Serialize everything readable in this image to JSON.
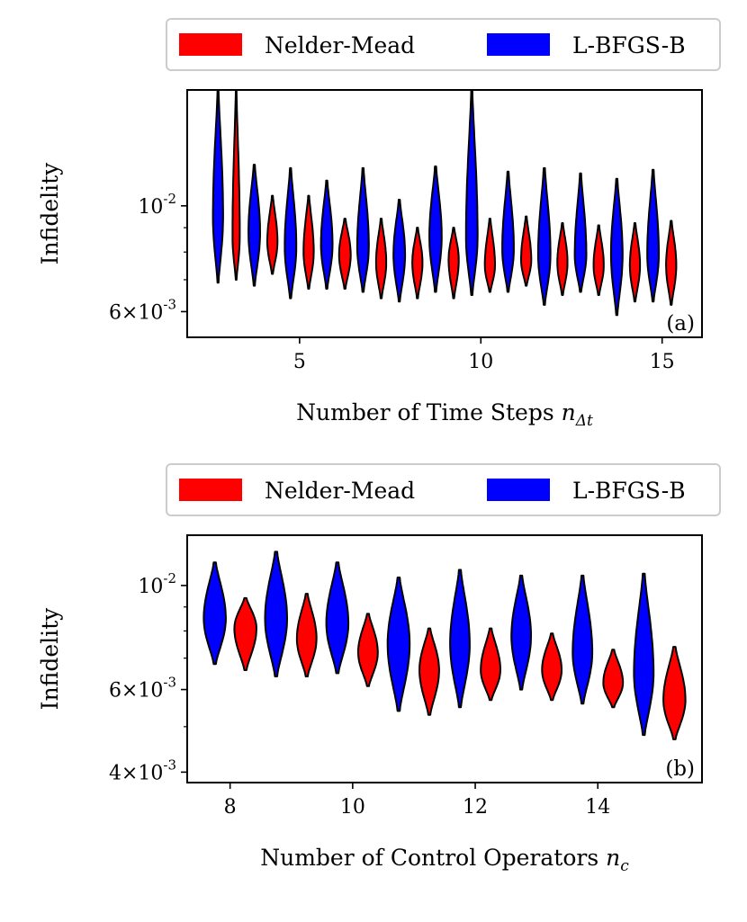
{
  "legend": {
    "entries": [
      {
        "label": "Nelder-Mead",
        "color": "#ff0000"
      },
      {
        "label": "L-BFGS-B",
        "color": "#0000ff"
      }
    ]
  },
  "colors": {
    "nelder_mead": "#ff0000",
    "lbfgsb": "#0000ff",
    "edge": "#000000"
  },
  "chart_data": [
    {
      "type": "violin",
      "panel_tag": "(a)",
      "xlabel_text": "Number of Time Steps ",
      "xlabel_math": "n",
      "xlabel_sub": "Δt",
      "ylabel": "Infidelity",
      "yscale": "log",
      "ylim": [
        0.0053,
        0.0175
      ],
      "xlim": [
        1.9,
        16.1
      ],
      "xticks": [
        {
          "value": 5,
          "label": "5"
        },
        {
          "value": 10,
          "label": "10"
        },
        {
          "value": 15,
          "label": "15"
        }
      ],
      "yticks": [
        {
          "value": 0.01,
          "base": "10",
          "exp": "-2"
        },
        {
          "value": 0.006,
          "base": "6×10",
          "exp": "-3"
        }
      ],
      "y_minor_ticks": [
        0.007,
        0.008,
        0.009
      ],
      "legend_position": "above",
      "series": [
        {
          "name": "L-BFGS-B",
          "colorKey": "lbfgsb",
          "offset": -0.25,
          "x": [
            3,
            4,
            5,
            6,
            7,
            8,
            9,
            10,
            11,
            12,
            13,
            14,
            15
          ],
          "min": [
            0.0069,
            0.0068,
            0.0064,
            0.0067,
            0.0066,
            0.0063,
            0.0066,
            0.0065,
            0.0066,
            0.0062,
            0.0066,
            0.0059,
            0.0063
          ],
          "max": [
            0.0175,
            0.0122,
            0.012,
            0.0113,
            0.012,
            0.0103,
            0.0121,
            0.0175,
            0.0118,
            0.012,
            0.0117,
            0.0114,
            0.0119
          ],
          "mode": [
            0.0095,
            0.0088,
            0.0082,
            0.0083,
            0.0082,
            0.0079,
            0.0086,
            0.0086,
            0.0081,
            0.0079,
            0.0079,
            0.0079,
            0.0079
          ],
          "width": [
            0.14,
            0.16,
            0.16,
            0.16,
            0.16,
            0.16,
            0.17,
            0.16,
            0.16,
            0.17,
            0.16,
            0.16,
            0.16
          ]
        },
        {
          "name": "Nelder-Mead",
          "colorKey": "nelder_mead",
          "offset": 0.25,
          "x": [
            3,
            4,
            5,
            6,
            7,
            8,
            9,
            10,
            11,
            12,
            13,
            14,
            15
          ],
          "min": [
            0.007,
            0.0072,
            0.0067,
            0.0067,
            0.0064,
            0.0064,
            0.0064,
            0.0066,
            0.0068,
            0.0065,
            0.0065,
            0.0063,
            0.0062
          ],
          "max": [
            0.0175,
            0.0105,
            0.0105,
            0.0094,
            0.0094,
            0.009,
            0.009,
            0.0094,
            0.0095,
            0.0092,
            0.0091,
            0.0092,
            0.0093
          ],
          "mode": [
            0.0086,
            0.0084,
            0.008,
            0.0079,
            0.0076,
            0.0076,
            0.0077,
            0.0075,
            0.0077,
            0.0076,
            0.0075,
            0.0075,
            0.0075
          ],
          "width": [
            0.1,
            0.14,
            0.14,
            0.16,
            0.14,
            0.14,
            0.14,
            0.14,
            0.14,
            0.14,
            0.14,
            0.14,
            0.14
          ]
        }
      ]
    },
    {
      "type": "violin",
      "panel_tag": "(b)",
      "xlabel_text": "Number of Control Operators ",
      "xlabel_math": "n",
      "xlabel_sub": "c",
      "ylabel": "Infidelity",
      "yscale": "log",
      "ylim": [
        0.0038,
        0.0128
      ],
      "xlim": [
        7.3,
        15.7
      ],
      "xticks": [
        {
          "value": 8,
          "label": "8"
        },
        {
          "value": 10,
          "label": "10"
        },
        {
          "value": 12,
          "label": "12"
        },
        {
          "value": 14,
          "label": "14"
        }
      ],
      "yticks": [
        {
          "value": 0.01,
          "base": "10",
          "exp": "-2"
        },
        {
          "value": 0.006,
          "base": "6×10",
          "exp": "-3"
        },
        {
          "value": 0.004,
          "base": "4×10",
          "exp": "-3"
        }
      ],
      "y_minor_ticks": [
        0.005,
        0.007,
        0.008,
        0.009
      ],
      "legend_position": "above",
      "series": [
        {
          "name": "L-BFGS-B",
          "colorKey": "lbfgsb",
          "offset": -0.25,
          "x": [
            8,
            9,
            10,
            11,
            12,
            13,
            14,
            15
          ],
          "min": [
            0.0068,
            0.0064,
            0.0065,
            0.0054,
            0.0055,
            0.006,
            0.0056,
            0.0048
          ],
          "max": [
            0.0112,
            0.0118,
            0.0112,
            0.0104,
            0.0108,
            0.0105,
            0.0105,
            0.0106
          ],
          "mode": [
            0.0085,
            0.0085,
            0.0083,
            0.0075,
            0.0075,
            0.0078,
            0.0072,
            0.0065
          ],
          "width": [
            0.18,
            0.18,
            0.18,
            0.18,
            0.16,
            0.16,
            0.16,
            0.16
          ]
        },
        {
          "name": "Nelder-Mead",
          "colorKey": "nelder_mead",
          "offset": 0.25,
          "x": [
            8,
            9,
            10,
            11,
            12,
            13,
            14,
            15
          ],
          "min": [
            0.0066,
            0.0064,
            0.0061,
            0.0053,
            0.0057,
            0.0057,
            0.0055,
            0.0047
          ],
          "max": [
            0.0094,
            0.0096,
            0.0087,
            0.0081,
            0.0081,
            0.0079,
            0.0073,
            0.0074
          ],
          "mode": [
            0.0081,
            0.0077,
            0.0072,
            0.0066,
            0.0066,
            0.0066,
            0.0062,
            0.0057
          ],
          "width": [
            0.18,
            0.16,
            0.16,
            0.16,
            0.16,
            0.16,
            0.16,
            0.18
          ]
        }
      ]
    }
  ]
}
